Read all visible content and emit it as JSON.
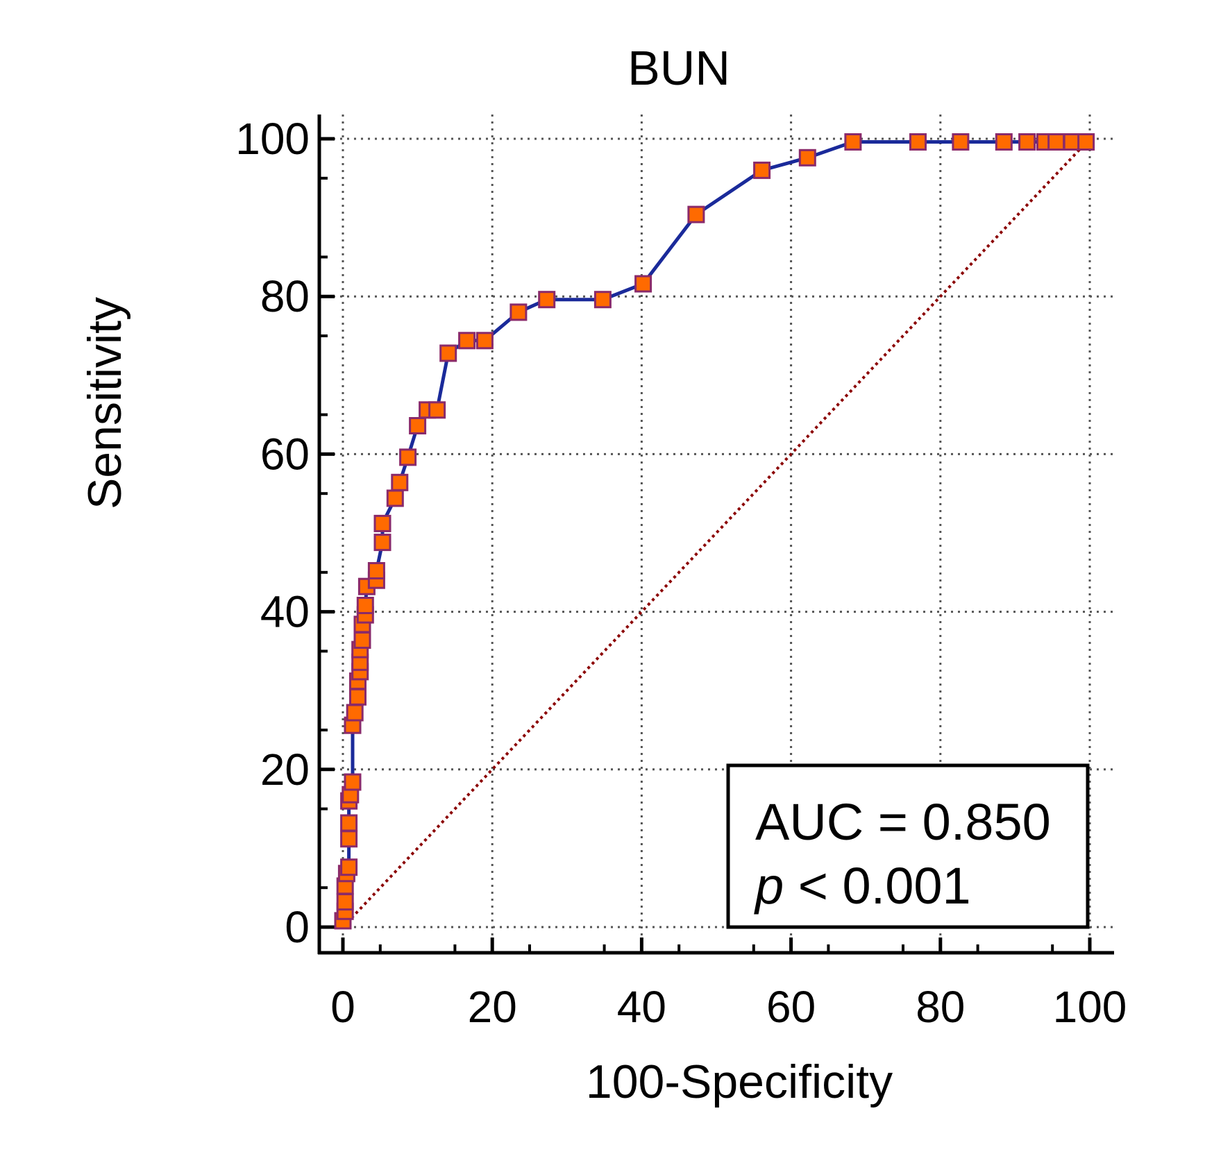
{
  "chart_data": {
    "type": "line",
    "title": "BUN",
    "xlabel": "100-Specificity",
    "ylabel": "Sensitivity",
    "xlim": [
      0,
      100
    ],
    "ylim": [
      0,
      100
    ],
    "x_ticks": [
      "0",
      "20",
      "40",
      "60",
      "80",
      "100"
    ],
    "y_ticks": [
      "0",
      "20",
      "40",
      "60",
      "80",
      "100"
    ],
    "grid": true,
    "series": [
      {
        "marker": "square",
        "color": "#1a2a9a",
        "marker_fill": "#ff6a00",
        "marker_edge": "#8a2a6a",
        "x": [
          0,
          0.3,
          0.3,
          0.3,
          0.5,
          0.8,
          0.8,
          0.8,
          0.8,
          1.0,
          1.3,
          1.3,
          1.6,
          2.0,
          2.0,
          2.3,
          2.3,
          2.3,
          2.6,
          2.6,
          3.0,
          3.0,
          3.2,
          4.5,
          4.5,
          5.3,
          5.3,
          7.0,
          7.6,
          8.7,
          10.0,
          11.3,
          12.6,
          14.1,
          16.6,
          19.0,
          23.5,
          27.3,
          34.8,
          40.2,
          47.3,
          56.1,
          62.2,
          68.3,
          77.0,
          82.7,
          88.5,
          91.6,
          94.0,
          95.5,
          97.6,
          99.5
        ],
        "y": [
          0.8,
          2.0,
          3.2,
          5.2,
          6.8,
          7.6,
          11.2,
          13.2,
          16.0,
          16.8,
          18.4,
          25.6,
          27.2,
          29.2,
          31.2,
          32.4,
          33.6,
          35.2,
          36.4,
          38.4,
          39.6,
          40.8,
          43.2,
          44.0,
          45.2,
          48.8,
          51.2,
          54.4,
          56.4,
          59.6,
          63.6,
          65.6,
          65.6,
          72.8,
          74.4,
          74.4,
          78.0,
          79.6,
          79.6,
          81.6,
          90.4,
          96.0,
          97.6,
          99.6,
          99.6,
          99.6,
          99.6,
          99.6,
          99.6,
          99.6,
          99.6,
          99.6
        ]
      }
    ],
    "reference_line": {
      "from": [
        0,
        0
      ],
      "to": [
        100,
        100
      ],
      "style": "dotted",
      "color": "#8b0000"
    },
    "annotation": {
      "auc_text": "AUC = 0.850",
      "p_symbol": "p",
      "p_text": " < 0.001",
      "placement": "bottom-right"
    }
  }
}
